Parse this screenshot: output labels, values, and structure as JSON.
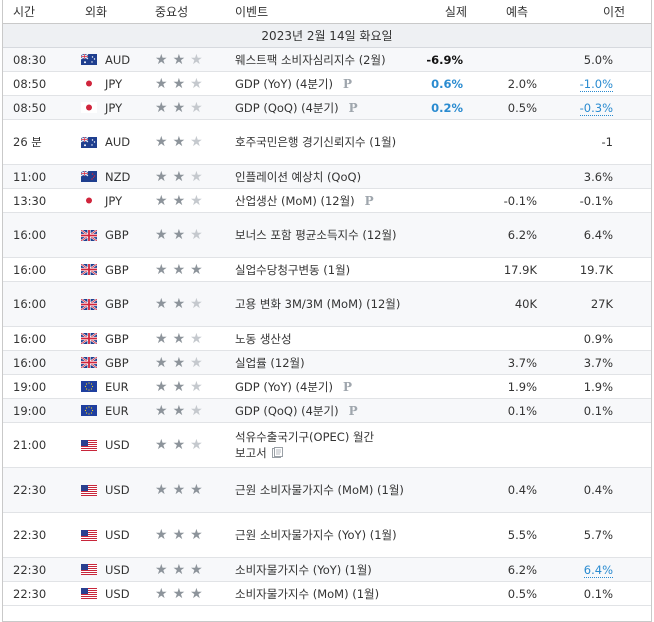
{
  "headers": {
    "time": "시간",
    "currency": "외화",
    "importance": "중요성",
    "event": "이벤트",
    "actual": "실제",
    "forecast": "예측",
    "previous": "이전"
  },
  "date_label": "2023년 2월 14일 화요일",
  "colors": {
    "blue": "#2a8bd0",
    "star_on": "#8d949b",
    "star_off": "#c5c9ce",
    "band": "#eef0f3"
  },
  "rows": [
    {
      "time": "08:30",
      "currency": "AUD",
      "flag": "flag-au-icon",
      "stars": 2,
      "event": "웨스트팩 소비자심리지수 (2월)",
      "pmark": "",
      "doc": false,
      "actual": "-6.9%",
      "actual_style": "black",
      "forecast": "",
      "previous": "5.0%",
      "previous_link": false,
      "height": 24
    },
    {
      "time": "08:50",
      "currency": "JPY",
      "flag": "flag-jp-icon",
      "stars": 2,
      "event": "GDP (YoY) (4분기)",
      "pmark": "P",
      "doc": false,
      "actual": "0.6%",
      "actual_style": "blue",
      "forecast": "2.0%",
      "previous": "-1.0%",
      "previous_link": true,
      "height": 24
    },
    {
      "time": "08:50",
      "currency": "JPY",
      "flag": "flag-jp-icon",
      "stars": 2,
      "event": "GDP (QoQ) (4분기)",
      "pmark": "P",
      "doc": false,
      "actual": "0.2%",
      "actual_style": "blue",
      "forecast": "0.5%",
      "previous": "-0.3%",
      "previous_link": true,
      "height": 24
    },
    {
      "time": "26 분",
      "currency": "AUD",
      "flag": "flag-au-icon",
      "stars": 2,
      "event": "호주국민은행 경기신뢰지수 (1월)",
      "pmark": "",
      "doc": false,
      "actual": "",
      "actual_style": "",
      "forecast": "",
      "previous": "-1",
      "previous_link": false,
      "height": 45
    },
    {
      "time": "11:00",
      "currency": "NZD",
      "flag": "flag-nz-icon",
      "stars": 2,
      "event": "인플레이션 예상치 (QoQ)",
      "pmark": "",
      "doc": false,
      "actual": "",
      "actual_style": "",
      "forecast": "",
      "previous": "3.6%",
      "previous_link": false,
      "height": 24
    },
    {
      "time": "13:30",
      "currency": "JPY",
      "flag": "flag-jp-icon",
      "stars": 2,
      "event": "산업생산 (MoM) (12월)",
      "pmark": "P",
      "doc": false,
      "actual": "",
      "actual_style": "",
      "forecast": "-0.1%",
      "previous": "-0.1%",
      "previous_link": false,
      "height": 24
    },
    {
      "time": "16:00",
      "currency": "GBP",
      "flag": "flag-gb-icon",
      "stars": 2,
      "event": "보너스 포함 평균소득지수 (12월)",
      "pmark": "",
      "doc": false,
      "actual": "",
      "actual_style": "",
      "forecast": "6.2%",
      "previous": "6.4%",
      "previous_link": false,
      "height": 45
    },
    {
      "time": "16:00",
      "currency": "GBP",
      "flag": "flag-gb-icon",
      "stars": 3,
      "event": "실업수당청구변동 (1월)",
      "pmark": "",
      "doc": false,
      "actual": "",
      "actual_style": "",
      "forecast": "17.9K",
      "previous": "19.7K",
      "previous_link": false,
      "height": 24
    },
    {
      "time": "16:00",
      "currency": "GBP",
      "flag": "flag-gb-icon",
      "stars": 2,
      "event": "고용 변화 3M/3M (MoM) (12월)",
      "pmark": "",
      "doc": false,
      "actual": "",
      "actual_style": "",
      "forecast": "40K",
      "previous": "27K",
      "previous_link": false,
      "height": 45
    },
    {
      "time": "16:00",
      "currency": "GBP",
      "flag": "flag-gb-icon",
      "stars": 2,
      "event": "노동 생산성",
      "pmark": "",
      "doc": false,
      "actual": "",
      "actual_style": "",
      "forecast": "",
      "previous": "0.9%",
      "previous_link": false,
      "height": 24
    },
    {
      "time": "16:00",
      "currency": "GBP",
      "flag": "flag-gb-icon",
      "stars": 2,
      "event": "실업률 (12월)",
      "pmark": "",
      "doc": false,
      "actual": "",
      "actual_style": "",
      "forecast": "3.7%",
      "previous": "3.7%",
      "previous_link": false,
      "height": 24
    },
    {
      "time": "19:00",
      "currency": "EUR",
      "flag": "flag-eu-icon",
      "stars": 2,
      "event": "GDP (YoY) (4분기)",
      "pmark": "P",
      "doc": false,
      "actual": "",
      "actual_style": "",
      "forecast": "1.9%",
      "previous": "1.9%",
      "previous_link": false,
      "height": 24
    },
    {
      "time": "19:00",
      "currency": "EUR",
      "flag": "flag-eu-icon",
      "stars": 2,
      "event": "GDP (QoQ) (4분기)",
      "pmark": "P",
      "doc": false,
      "actual": "",
      "actual_style": "",
      "forecast": "0.1%",
      "previous": "0.1%",
      "previous_link": false,
      "height": 24
    },
    {
      "time": "21:00",
      "currency": "USD",
      "flag": "flag-us-icon",
      "stars": 2,
      "event": "석유수출국기구(OPEC) 월간 보고서",
      "pmark": "",
      "doc": true,
      "actual": "",
      "actual_style": "",
      "forecast": "",
      "previous": "",
      "previous_link": false,
      "height": 45
    },
    {
      "time": "22:30",
      "currency": "USD",
      "flag": "flag-us-icon",
      "stars": 3,
      "event": "근원 소비자물가지수 (MoM) (1월)",
      "pmark": "",
      "doc": false,
      "actual": "",
      "actual_style": "",
      "forecast": "0.4%",
      "previous": "0.4%",
      "previous_link": false,
      "height": 45
    },
    {
      "time": "22:30",
      "currency": "USD",
      "flag": "flag-us-icon",
      "stars": 3,
      "event": "근원 소비자물가지수 (YoY) (1월)",
      "pmark": "",
      "doc": false,
      "actual": "",
      "actual_style": "",
      "forecast": "5.5%",
      "previous": "5.7%",
      "previous_link": false,
      "height": 45
    },
    {
      "time": "22:30",
      "currency": "USD",
      "flag": "flag-us-icon",
      "stars": 3,
      "event": "소비자물가지수 (YoY) (1월)",
      "pmark": "",
      "doc": false,
      "actual": "",
      "actual_style": "",
      "forecast": "6.2%",
      "previous": "6.4%",
      "previous_link": true,
      "height": 24
    },
    {
      "time": "22:30",
      "currency": "USD",
      "flag": "flag-us-icon",
      "stars": 3,
      "event": "소비자물가지수 (MoM) (1월)",
      "pmark": "",
      "doc": false,
      "actual": "",
      "actual_style": "",
      "forecast": "0.5%",
      "previous": "0.1%",
      "previous_link": false,
      "height": 24
    }
  ]
}
